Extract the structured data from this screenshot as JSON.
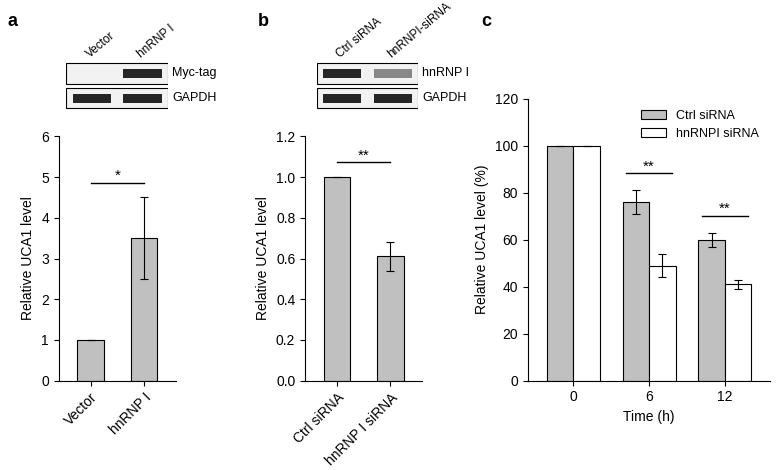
{
  "chart_data": [
    {
      "type": "bar",
      "categories": [
        "Vector",
        "hnRNP I"
      ],
      "values": [
        1,
        3.5
      ],
      "errors": [
        0,
        1.0
      ],
      "color": "#c0c0c0",
      "ylabel": "Relative UCA1 level",
      "ylim": [
        0,
        6
      ],
      "yticks": [
        0,
        1,
        2,
        3,
        4,
        5,
        6
      ],
      "annotations": [
        {
          "between": [
            0,
            1
          ],
          "label": "*"
        }
      ]
    },
    {
      "type": "bar",
      "categories": [
        "Ctrl siRNA",
        "hnRNP I siRNA"
      ],
      "values": [
        1.0,
        0.61
      ],
      "errors": [
        0,
        0.07
      ],
      "color": "#c0c0c0",
      "ylabel": "Relative UCA1 level",
      "ylim": [
        0,
        1.2
      ],
      "yticks": [
        {
          "value": 0,
          "label": "0.0"
        },
        0.2,
        0.4,
        0.6,
        0.8,
        {
          "value": 1,
          "label": "1.0"
        },
        1.2
      ],
      "annotations": [
        {
          "between": [
            0,
            1
          ],
          "label": "**"
        }
      ]
    },
    {
      "type": "bar",
      "categories": [
        "0",
        "6",
        "12"
      ],
      "xlabel": "Time (h)",
      "ylabel": "Relative UCA1 level (%)",
      "series": [
        {
          "name": "Ctrl siRNA",
          "color": "#c0c0c0",
          "values": [
            100,
            76,
            60
          ],
          "errors": [
            0,
            5,
            3
          ]
        },
        {
          "name": "hnRNPI siRNA",
          "color": "#ffffff",
          "values": [
            100,
            49,
            41
          ],
          "errors": [
            0,
            5,
            2
          ]
        }
      ],
      "ylim": [
        0,
        120
      ],
      "yticks": [
        0,
        20,
        40,
        60,
        80,
        100,
        120
      ],
      "legend": "upper right",
      "annotations": [
        {
          "category": 1,
          "label": "**"
        },
        {
          "category": 2,
          "label": "**"
        }
      ]
    }
  ],
  "panel_labels": [
    "a",
    "b",
    "c"
  ],
  "blots": [
    {
      "lanes": [
        "Vector",
        "hnRNP I"
      ],
      "rows": [
        {
          "label": "Myc-tag",
          "intensity": [
            0,
            1
          ]
        },
        {
          "label": "GAPDH",
          "intensity": [
            1,
            1
          ]
        }
      ]
    },
    {
      "lanes": [
        "Ctrl siRNA",
        "hnRNPI-siRNA"
      ],
      "rows": [
        {
          "label": "hnRNP I",
          "intensity": [
            1,
            0.55
          ]
        },
        {
          "label": "GAPDH",
          "intensity": [
            1,
            1
          ]
        }
      ]
    }
  ]
}
